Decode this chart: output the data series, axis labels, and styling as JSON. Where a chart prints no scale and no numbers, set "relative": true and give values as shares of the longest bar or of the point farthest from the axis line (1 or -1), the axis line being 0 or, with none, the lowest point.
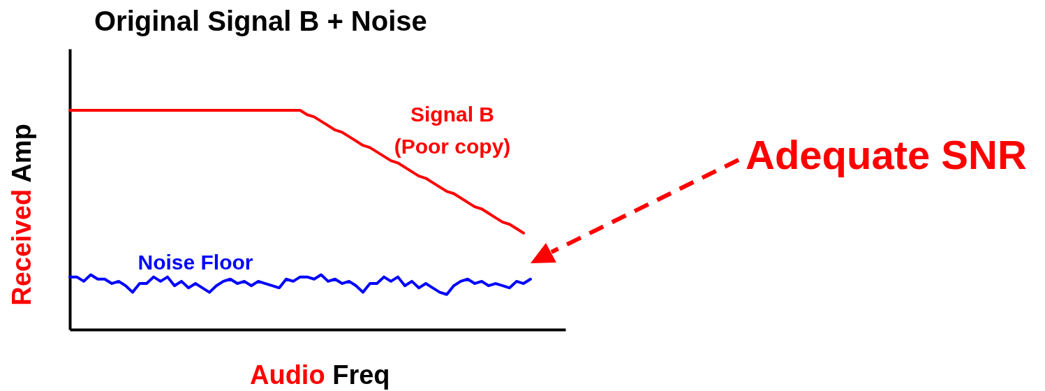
{
  "chart_data": {
    "type": "line",
    "title": "Original Signal B + Noise",
    "xlabel": "Audio Freq",
    "ylabel": "Received Amp",
    "relative": true,
    "grid": false,
    "legend": false,
    "marker": "none",
    "line_style": "solid",
    "annotations": [
      "Adequate SNR"
    ],
    "categories": [
      null,
      null,
      null,
      null,
      null,
      null,
      null,
      null,
      null,
      null,
      null,
      null,
      null,
      null,
      null,
      null,
      null,
      null,
      null,
      null,
      null,
      null,
      null,
      null,
      null,
      null,
      null,
      null,
      null,
      null,
      null,
      null,
      null,
      null,
      null,
      null,
      null,
      null,
      null,
      null,
      null,
      null,
      null,
      null,
      null,
      null,
      null,
      null,
      null,
      null,
      null,
      null,
      null,
      null,
      null,
      null,
      null,
      null,
      null,
      null,
      null,
      null,
      null,
      null,
      null,
      null,
      null,
      null,
      null,
      null,
      null,
      null
    ],
    "series": [
      {
        "name": "Signal B (Poor copy)",
        "color": "#ff0000",
        "values": [
          1,
          1,
          1,
          1,
          1,
          1,
          1,
          1,
          1,
          1,
          1,
          1,
          1,
          1,
          1,
          1,
          1,
          1,
          1,
          1,
          1,
          1,
          1,
          1,
          1,
          1,
          1,
          1,
          1,
          1,
          1,
          1,
          1,
          1,
          0.98,
          0.97,
          0.95,
          0.93,
          0.91,
          0.9,
          0.88,
          0.86,
          0.84,
          0.83,
          0.81,
          0.79,
          0.77,
          0.76,
          0.74,
          0.72,
          0.7,
          0.69,
          0.67,
          0.65,
          0.63,
          0.62,
          0.6,
          0.58,
          0.56,
          0.55,
          0.53,
          0.51,
          0.49,
          0.48,
          0.46,
          0.44,
          null,
          null,
          null,
          null,
          null,
          null
        ]
      },
      {
        "name": "Noise Floor",
        "color": "#0000ff",
        "values": [
          0.24,
          0.24,
          0.22,
          0.25,
          0.23,
          0.23,
          0.21,
          0.22,
          0.2,
          0.17,
          0.21,
          0.21,
          0.24,
          0.22,
          0.24,
          0.2,
          0.22,
          0.19,
          0.21,
          0.19,
          0.17,
          0.2,
          0.22,
          0.23,
          0.21,
          0.22,
          0.2,
          0.22,
          0.21,
          0.2,
          0.19,
          0.23,
          0.22,
          0.24,
          0.24,
          0.23,
          0.25,
          0.22,
          0.23,
          0.21,
          0.22,
          0.2,
          0.17,
          0.21,
          0.21,
          0.24,
          0.22,
          0.24,
          0.2,
          0.22,
          0.19,
          0.21,
          0.19,
          0.17,
          0.16,
          0.2,
          0.22,
          0.23,
          0.21,
          0.22,
          0.2,
          0.21,
          0.2,
          0.19,
          0.22,
          0.21,
          0.23,
          null,
          null,
          null,
          null,
          null
        ]
      }
    ]
  }
}
